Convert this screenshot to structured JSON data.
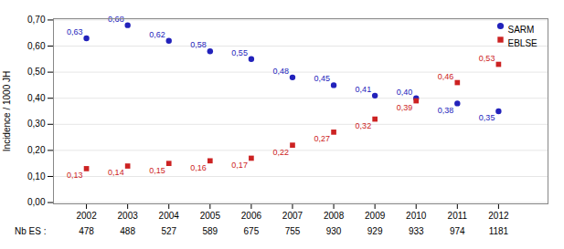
{
  "chart_data": {
    "type": "scatter",
    "x": [
      2002,
      2003,
      2004,
      2005,
      2006,
      2007,
      2008,
      2009,
      2010,
      2011,
      2012
    ],
    "series": [
      {
        "name": "SARM",
        "color": "#2222bb",
        "marker": "circle",
        "values": [
          0.63,
          0.68,
          0.62,
          0.58,
          0.55,
          0.48,
          0.45,
          0.41,
          0.4,
          0.38,
          0.35
        ],
        "value_labels": [
          "0,63",
          "0,68",
          "0,62",
          "0,58",
          "0,55",
          "0,48",
          "0,45",
          "0,41",
          "0,40",
          "0,38",
          "0,35"
        ]
      },
      {
        "name": "EBLSE",
        "color": "#cc2222",
        "marker": "square",
        "values": [
          0.13,
          0.14,
          0.15,
          0.16,
          0.17,
          0.22,
          0.27,
          0.32,
          0.39,
          0.46,
          0.53
        ],
        "value_labels": [
          "0,13",
          "0,14",
          "0,15",
          "0,16",
          "0,17",
          "0,22",
          "0,27",
          "0,32",
          "0,39",
          "0,46",
          "0,53"
        ]
      }
    ],
    "ylabel": "Incidence / 1000 JH",
    "xlim": [
      2001.2,
      2013.2
    ],
    "xticks": [
      2002,
      2003,
      2004,
      2005,
      2006,
      2007,
      2008,
      2009,
      2010,
      2011,
      2012
    ],
    "ylim": [
      -0.005,
      0.705
    ],
    "yticks": [
      {
        "value": 0.0,
        "label": "0,00"
      },
      {
        "value": 0.1,
        "label": "0,10"
      },
      {
        "value": 0.2,
        "label": "0,20"
      },
      {
        "value": 0.3,
        "label": "0,30"
      },
      {
        "value": 0.4,
        "label": "0,40"
      },
      {
        "value": 0.5,
        "label": "0,50"
      },
      {
        "value": 0.6,
        "label": "0,60"
      },
      {
        "value": 0.7,
        "label": "0,70"
      }
    ],
    "nb_es_label": "Nb ES :",
    "nb_es": [
      478,
      488,
      527,
      589,
      675,
      755,
      930,
      929,
      933,
      974,
      1181
    ],
    "grid": true,
    "legend": "upper right",
    "data_labels": true
  }
}
